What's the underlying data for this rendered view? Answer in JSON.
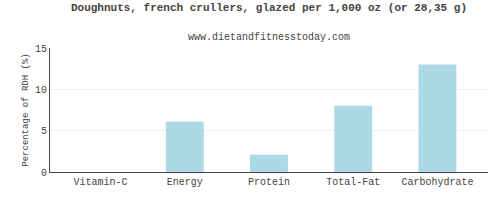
{
  "chart_data": {
    "type": "bar",
    "title": "Doughnuts, french crullers, glazed per 1,000 oz (or 28,35 g)",
    "subtitle": "www.dietandfitnesstoday.com",
    "categories": [
      "Vitamin-C",
      "Energy",
      "Protein",
      "Total-Fat",
      "Carbohydrate"
    ],
    "values": [
      0,
      6.1,
      2.1,
      8.0,
      13.0
    ],
    "color": "#add8e6",
    "ylabel": "Percentage of RDH (%)",
    "ylim": [
      0,
      15
    ],
    "yticks": [
      0,
      5,
      10,
      15
    ],
    "grid": true
  }
}
